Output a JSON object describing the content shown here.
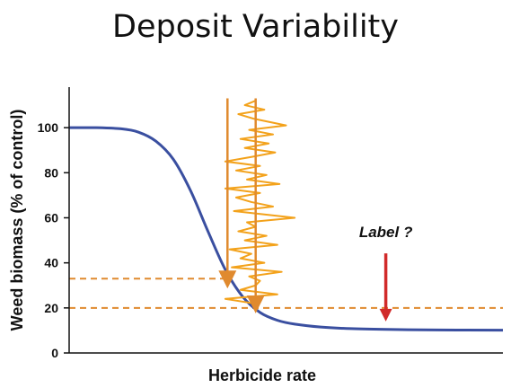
{
  "title": "Deposit Variability",
  "chart_data": {
    "type": "line",
    "title": "Deposit Variability",
    "xlabel": "Herbicide rate",
    "ylabel": "Weed biomass (% of control)",
    "ylim": [
      0,
      118
    ],
    "yticks": [
      0,
      20,
      40,
      60,
      80,
      100
    ],
    "xlim": [
      0,
      10
    ],
    "x_tick_labels": false,
    "grid": false,
    "series": [
      {
        "name": "",
        "role": "dose-response curve",
        "color": "#3a4fa0",
        "x": [
          0,
          0.6,
          1.2,
          1.6,
          2.0,
          2.4,
          2.8,
          3.2,
          3.6,
          4.0,
          4.4,
          4.8,
          5.2,
          5.8,
          6.5,
          7.5,
          8.5,
          10
        ],
        "y": [
          100,
          100,
          99.5,
          98,
          94,
          86,
          72,
          54,
          37,
          25,
          18,
          14.5,
          12.8,
          11.5,
          10.8,
          10.4,
          10.2,
          10.1
        ]
      }
    ],
    "reference_lines": [
      {
        "y": 33,
        "x_start": 0,
        "x_end": 3.65,
        "style": "dashed",
        "color": "#e08a2e"
      },
      {
        "y": 20,
        "x_start": 0,
        "x_end": 10,
        "style": "dashed",
        "color": "#e08a2e"
      }
    ],
    "vertical_lines": [
      {
        "x": 3.65,
        "y_start": 31,
        "y_end": 113,
        "color": "#e08a2e",
        "arrow": true
      },
      {
        "x": 4.3,
        "y_start": 20,
        "y_end": 113,
        "color": "#e08a2e",
        "arrow": true
      }
    ],
    "deposit_trace": {
      "color": "#f3a21b",
      "points": [
        [
          4.3,
          112
        ],
        [
          4.05,
          110
        ],
        [
          4.5,
          108
        ],
        [
          3.9,
          106
        ],
        [
          4.25,
          104
        ],
        [
          5.0,
          101
        ],
        [
          4.15,
          99
        ],
        [
          4.7,
          97
        ],
        [
          3.95,
          95
        ],
        [
          4.6,
          93
        ],
        [
          4.05,
          91
        ],
        [
          4.75,
          89
        ],
        [
          4.2,
          87
        ],
        [
          3.6,
          85
        ],
        [
          4.4,
          83
        ],
        [
          3.85,
          81
        ],
        [
          4.55,
          79
        ],
        [
          4.1,
          77
        ],
        [
          4.85,
          75
        ],
        [
          3.6,
          73
        ],
        [
          4.4,
          71
        ],
        [
          3.85,
          69
        ],
        [
          4.2,
          67
        ],
        [
          4.7,
          65
        ],
        [
          3.8,
          63
        ],
        [
          5.2,
          60
        ],
        [
          4.1,
          58
        ],
        [
          4.3,
          56
        ],
        [
          3.9,
          54
        ],
        [
          4.55,
          52
        ],
        [
          4.05,
          50
        ],
        [
          4.8,
          48
        ],
        [
          3.7,
          46
        ],
        [
          4.2,
          44
        ],
        [
          3.95,
          42
        ],
        [
          4.5,
          40
        ],
        [
          3.75,
          38
        ],
        [
          4.9,
          36
        ],
        [
          4.15,
          34
        ],
        [
          4.4,
          32
        ],
        [
          4.3,
          30
        ],
        [
          3.95,
          28
        ],
        [
          4.8,
          26
        ],
        [
          3.6,
          24
        ],
        [
          4.25,
          22
        ],
        [
          4.3,
          20
        ]
      ]
    },
    "annotations": [
      {
        "text": "Label ?",
        "x": 7.3,
        "y": 45,
        "arrow_to": [
          7.3,
          14
        ],
        "arrow_color": "#d12a2a"
      }
    ]
  }
}
